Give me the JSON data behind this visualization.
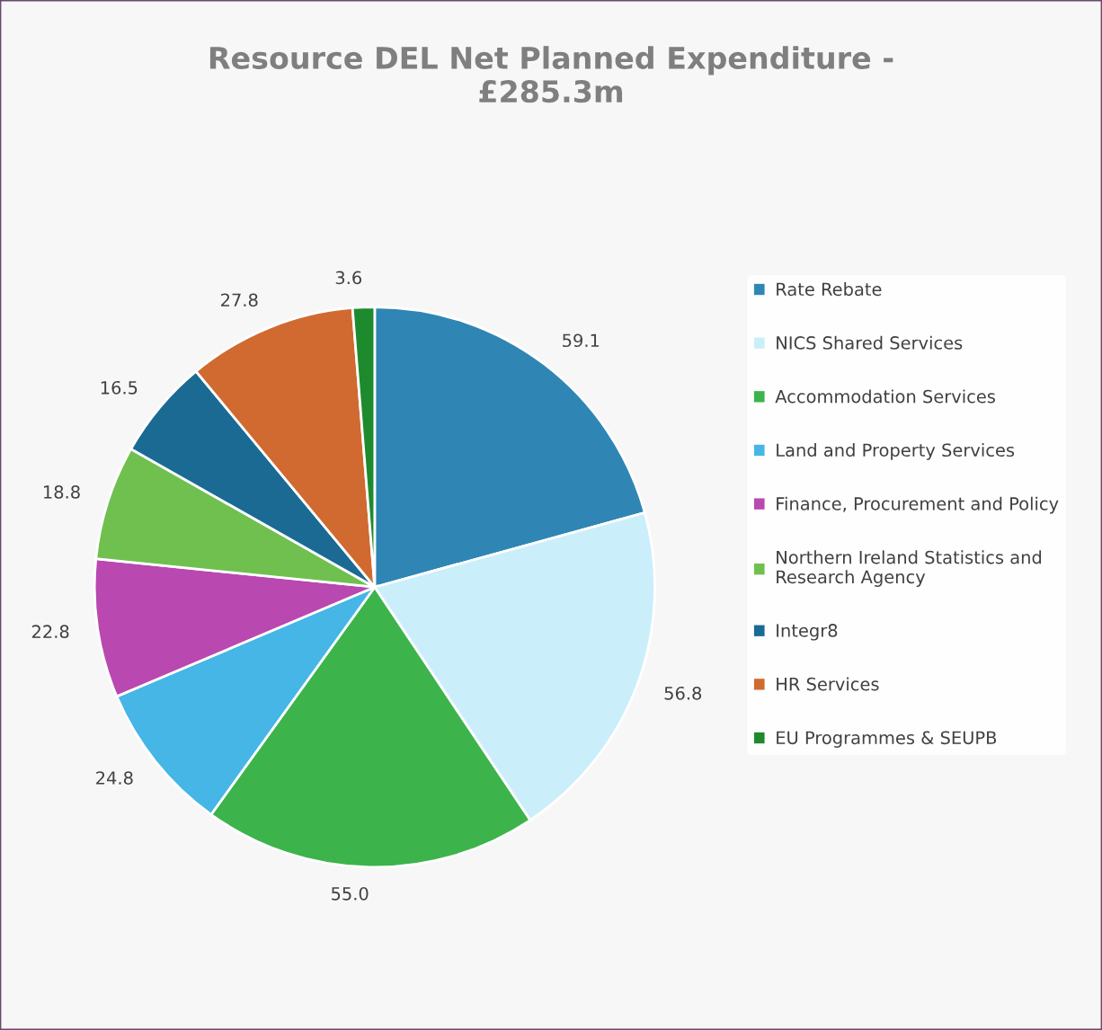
{
  "chart_data": {
    "type": "pie",
    "title": "Resource DEL Net Planned Expenditure -\n£285.3m",
    "categories": [
      "Rate Rebate",
      "NICS Shared Services",
      "Accommodation Services",
      "Land and Property Services",
      "Finance, Procurement and Policy",
      "Northern Ireland Statistics and Research Agency",
      "Integr8",
      "HR Services",
      "EU Programmes & SEUPB"
    ],
    "values": [
      59.1,
      56.8,
      55.0,
      24.8,
      22.8,
      18.8,
      16.5,
      27.8,
      3.6
    ],
    "colors": [
      "#2f86b5",
      "#cbeefb",
      "#3cb44b",
      "#45b6e6",
      "#b948b0",
      "#70c050",
      "#1a6a94",
      "#d06a30",
      "#1e8a2e"
    ],
    "value_labels": [
      "59.1",
      "56.8",
      "55.0",
      "24.8",
      "22.8",
      "18.8",
      "16.5",
      "27.8",
      "3.6"
    ],
    "legend": "right"
  }
}
